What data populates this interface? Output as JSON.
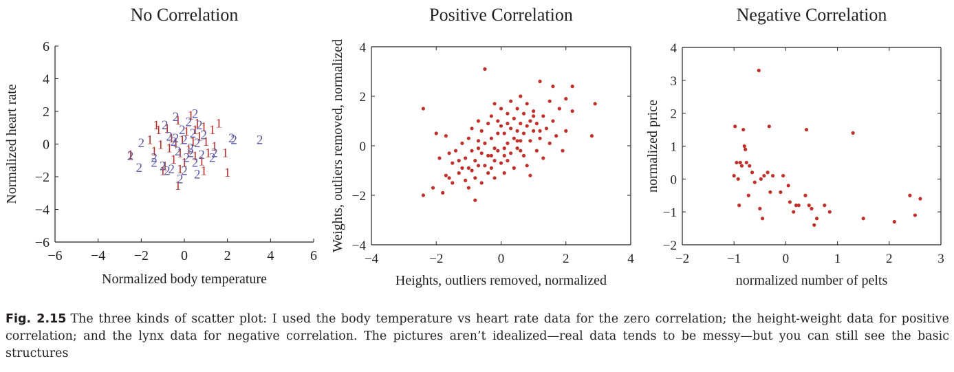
{
  "caption": {
    "label": "Fig. 2.15",
    "text": "The three kinds of scatter plot: I used the body temperature vs heart rate data for the zero correlation; the height-weight data for positive correlation; and the lynx data for negative correlation. The pictures aren’t idealized—real data tends to be messy—but you can still see the basic structures"
  },
  "colors": {
    "series1": "#b5312b",
    "series2": "#5a59a8",
    "points": "#c0302a",
    "axis": "#231f20"
  },
  "chart_data": [
    {
      "type": "scatter",
      "title": "No Correlation",
      "xlabel": "Normalized body temperature",
      "ylabel": "Normalized heart rate",
      "xlim": [
        -6,
        6
      ],
      "ylim": [
        -6,
        6
      ],
      "xticks": [
        -6,
        -4,
        -2,
        0,
        2,
        4,
        6
      ],
      "yticks": [
        -6,
        -4,
        -2,
        0,
        2,
        4,
        6
      ],
      "frame": "left-bottom",
      "grid": false,
      "marker": "text",
      "series": [
        {
          "label": "1",
          "color": "#b5312b",
          "points": [
            [
              -1.3,
              1.2
            ],
            [
              -1.2,
              0.9
            ],
            [
              -1.1,
              0
            ],
            [
              -1.0,
              -1.6
            ],
            [
              -0.8,
              1.0
            ],
            [
              -0.7,
              -0.2
            ],
            [
              -0.6,
              0.4
            ],
            [
              -0.5,
              -0.9
            ],
            [
              -0.4,
              0.1
            ],
            [
              -0.3,
              1.5
            ],
            [
              -0.2,
              -0.5
            ],
            [
              -0.1,
              0.3
            ],
            [
              0,
              -1.1
            ],
            [
              0.1,
              0.8
            ],
            [
              0.2,
              -0.3
            ],
            [
              0.3,
              1.8
            ],
            [
              0.4,
              0.2
            ],
            [
              0.5,
              -0.7
            ],
            [
              0.6,
              1.3
            ],
            [
              0.7,
              0.5
            ],
            [
              0.8,
              -1.0
            ],
            [
              0.9,
              1.1
            ],
            [
              1.0,
              0.2
            ],
            [
              1.1,
              -0.5
            ],
            [
              1.3,
              0.9
            ],
            [
              1.4,
              -0.1
            ],
            [
              1.6,
              1.3
            ],
            [
              1.9,
              -0.5
            ],
            [
              2.0,
              -1.7
            ],
            [
              -1.4,
              -0.4
            ],
            [
              -1.6,
              0.3
            ],
            [
              0.9,
              -1.6
            ],
            [
              0.5,
              0.9
            ],
            [
              -0.9,
              -1.3
            ],
            [
              -0.2,
              -1.5
            ],
            [
              -0.3,
              -2.5
            ],
            [
              -2.5,
              -0.6
            ]
          ]
        },
        {
          "label": "2",
          "color": "#5a59a8",
          "points": [
            [
              -2.5,
              -0.7
            ],
            [
              -2.0,
              0.1
            ],
            [
              -2.1,
              -1.4
            ],
            [
              -1.4,
              -0.8
            ],
            [
              -1.4,
              -1.1
            ],
            [
              -0.9,
              1.2
            ],
            [
              -0.8,
              -1.6
            ],
            [
              -0.7,
              0.5
            ],
            [
              -0.6,
              -1.5
            ],
            [
              -0.5,
              0.2
            ],
            [
              -0.4,
              1.7
            ],
            [
              -0.3,
              -0.4
            ],
            [
              -0.2,
              -2.1
            ],
            [
              -0.1,
              0.9
            ],
            [
              0,
              0.3
            ],
            [
              0.1,
              -0.8
            ],
            [
              0.2,
              1.4
            ],
            [
              0.3,
              -0.2
            ],
            [
              0.4,
              0.7
            ],
            [
              0.5,
              -1.1
            ],
            [
              0.5,
              1.9
            ],
            [
              0.6,
              0.1
            ],
            [
              0.7,
              1.2
            ],
            [
              0.8,
              -0.6
            ],
            [
              1.3,
              -0.8
            ],
            [
              1.4,
              -0.5
            ],
            [
              2.2,
              0.4
            ],
            [
              2.3,
              0.3
            ],
            [
              3.5,
              0.3
            ],
            [
              -1.0,
              -1.3
            ],
            [
              0,
              -1.6
            ],
            [
              0.6,
              -1.8
            ],
            [
              0.3,
              -0.5
            ],
            [
              -0.4,
              0.4
            ],
            [
              0.9,
              0.6
            ]
          ]
        }
      ]
    },
    {
      "type": "scatter",
      "title": "Positive Correlation",
      "xlabel": "Heights, outliers removed, normalized",
      "ylabel": "Weights, outliers removed, normalized",
      "xlim": [
        -4,
        4
      ],
      "ylim": [
        -4,
        4
      ],
      "xticks": [
        -4,
        -2,
        0,
        2,
        4
      ],
      "yticks": [
        -4,
        -2,
        0,
        2,
        4
      ],
      "frame": "box",
      "grid": false,
      "marker": "dot",
      "series": [
        {
          "color": "#c0302a",
          "points": [
            [
              -2.4,
              1.5
            ],
            [
              -2.4,
              -2.0
            ],
            [
              -2.1,
              -1.7
            ],
            [
              -2.0,
              0.5
            ],
            [
              -1.9,
              -0.5
            ],
            [
              -1.8,
              -1.9
            ],
            [
              -1.7,
              0.4
            ],
            [
              -1.6,
              -1.3
            ],
            [
              -1.6,
              -0.3
            ],
            [
              -1.5,
              -1.5
            ],
            [
              -1.5,
              -0.7
            ],
            [
              -1.4,
              -0.2
            ],
            [
              -1.3,
              -0.6
            ],
            [
              -1.3,
              -1.1
            ],
            [
              -1.2,
              0.1
            ],
            [
              -1.2,
              -0.9
            ],
            [
              -1.1,
              -1.4
            ],
            [
              -1.1,
              -0.5
            ],
            [
              -1.0,
              -0.9
            ],
            [
              -1.0,
              0.3
            ],
            [
              -1.0,
              -1.7
            ],
            [
              -0.9,
              -0.2
            ],
            [
              -0.9,
              -1.0
            ],
            [
              -0.9,
              0.7
            ],
            [
              -0.8,
              -0.6
            ],
            [
              -0.8,
              -2.2
            ],
            [
              -0.8,
              -1.3
            ],
            [
              -0.7,
              0.2
            ],
            [
              -0.7,
              -0.8
            ],
            [
              -0.7,
              1.0
            ],
            [
              -0.6,
              -0.3
            ],
            [
              -0.6,
              -1.5
            ],
            [
              -0.6,
              0.6
            ],
            [
              -0.5,
              -0.8
            ],
            [
              -0.5,
              3.1
            ],
            [
              -0.5,
              0.1
            ],
            [
              -0.4,
              -1.1
            ],
            [
              -0.4,
              0.9
            ],
            [
              -0.4,
              -0.4
            ],
            [
              -0.3,
              -0.9
            ],
            [
              -0.3,
              1.2
            ],
            [
              -0.3,
              0.3
            ],
            [
              -0.2,
              -0.6
            ],
            [
              -0.2,
              1.7
            ],
            [
              -0.2,
              -1.3
            ],
            [
              -0.1,
              0.5
            ],
            [
              -0.1,
              -0.2
            ],
            [
              -0.1,
              1.0
            ],
            [
              0.0,
              -0.7
            ],
            [
              0.0,
              0.8
            ],
            [
              0.0,
              1.5
            ],
            [
              0.1,
              -0.1
            ],
            [
              0.1,
              0.5
            ],
            [
              0.1,
              -1.1
            ],
            [
              0.2,
              1.3
            ],
            [
              0.2,
              0.1
            ],
            [
              0.2,
              -0.6
            ],
            [
              0.3,
              0.7
            ],
            [
              0.3,
              1.8
            ],
            [
              0.3,
              -0.3
            ],
            [
              0.4,
              0.3
            ],
            [
              0.4,
              1.1
            ],
            [
              0.4,
              -0.9
            ],
            [
              0.5,
              0.6
            ],
            [
              0.5,
              1.5
            ],
            [
              0.5,
              -0.1
            ],
            [
              0.6,
              0.9
            ],
            [
              0.6,
              0.2
            ],
            [
              0.6,
              2.0
            ],
            [
              0.7,
              -0.4
            ],
            [
              0.7,
              1.3
            ],
            [
              0.7,
              0.5
            ],
            [
              0.8,
              0.8
            ],
            [
              0.8,
              -0.8
            ],
            [
              0.8,
              1.7
            ],
            [
              0.9,
              0.2
            ],
            [
              0.9,
              1.0
            ],
            [
              0.9,
              -1.2
            ],
            [
              1.0,
              0.6
            ],
            [
              1.0,
              1.4
            ],
            [
              1.1,
              -0.2
            ],
            [
              1.1,
              0.9
            ],
            [
              1.2,
              2.6
            ],
            [
              1.2,
              0.3
            ],
            [
              1.3,
              1.2
            ],
            [
              1.3,
              -0.5
            ],
            [
              1.4,
              0.7
            ],
            [
              1.5,
              1.8
            ],
            [
              1.5,
              0.1
            ],
            [
              1.6,
              2.4
            ],
            [
              1.6,
              1.0
            ],
            [
              1.7,
              0.4
            ],
            [
              1.8,
              1.5
            ],
            [
              1.9,
              -0.2
            ],
            [
              2.0,
              0.6
            ],
            [
              2.0,
              1.9
            ],
            [
              2.2,
              2.4
            ],
            [
              2.2,
              1.4
            ],
            [
              2.8,
              0.4
            ],
            [
              2.9,
              1.7
            ],
            [
              -1.7,
              -1.2
            ],
            [
              -0.2,
              -0.1
            ],
            [
              0.1,
              -0.4
            ],
            [
              0.5,
              0.2
            ],
            [
              1.0,
              1.2
            ],
            [
              -0.7,
              -0.1
            ],
            [
              0.2,
              0.9
            ],
            [
              0.6,
              -0.2
            ],
            [
              -0.3,
              -0.4
            ],
            [
              1.2,
              0.6
            ]
          ]
        }
      ]
    },
    {
      "type": "scatter",
      "title": "Negative Correlation",
      "xlabel": "normalized number of pelts",
      "ylabel": "normalized price",
      "xlim": [
        -2,
        3
      ],
      "ylim": [
        -2,
        4
      ],
      "xticks": [
        -2,
        -1,
        0,
        1,
        2,
        3
      ],
      "yticks": [
        -2,
        -1,
        0,
        1,
        2,
        3,
        4
      ],
      "frame": "box",
      "grid": false,
      "marker": "dot",
      "series": [
        {
          "color": "#c0302a",
          "points": [
            [
              -1.0,
              0.1
            ],
            [
              -0.98,
              1.6
            ],
            [
              -0.95,
              0.5
            ],
            [
              -0.92,
              0.0
            ],
            [
              -0.9,
              -0.8
            ],
            [
              -0.88,
              0.5
            ],
            [
              -0.85,
              0.4
            ],
            [
              -0.82,
              1.5
            ],
            [
              -0.8,
              1.0
            ],
            [
              -0.78,
              0.9
            ],
            [
              -0.76,
              0.5
            ],
            [
              -0.72,
              -0.5
            ],
            [
              -0.7,
              0.4
            ],
            [
              -0.65,
              0.2
            ],
            [
              -0.6,
              -0.1
            ],
            [
              -0.52,
              3.3
            ],
            [
              -0.5,
              -0.9
            ],
            [
              -0.48,
              0.0
            ],
            [
              -0.45,
              -1.2
            ],
            [
              -0.42,
              0.1
            ],
            [
              -0.35,
              0.2
            ],
            [
              -0.32,
              1.6
            ],
            [
              -0.3,
              -0.4
            ],
            [
              -0.25,
              0.1
            ],
            [
              -0.1,
              -0.4
            ],
            [
              -0.05,
              0.1
            ],
            [
              0.05,
              -0.2
            ],
            [
              0.08,
              -0.7
            ],
            [
              0.15,
              -1.0
            ],
            [
              0.2,
              -0.8
            ],
            [
              0.25,
              -0.8
            ],
            [
              0.38,
              -0.5
            ],
            [
              0.4,
              1.5
            ],
            [
              0.45,
              -0.8
            ],
            [
              0.5,
              -0.9
            ],
            [
              0.55,
              -1.4
            ],
            [
              0.6,
              -1.2
            ],
            [
              0.75,
              -0.8
            ],
            [
              0.85,
              -1.0
            ],
            [
              1.3,
              1.4
            ],
            [
              1.5,
              -1.2
            ],
            [
              2.1,
              -1.3
            ],
            [
              2.4,
              -0.5
            ],
            [
              2.5,
              -1.1
            ],
            [
              2.6,
              -0.6
            ]
          ]
        }
      ]
    }
  ]
}
